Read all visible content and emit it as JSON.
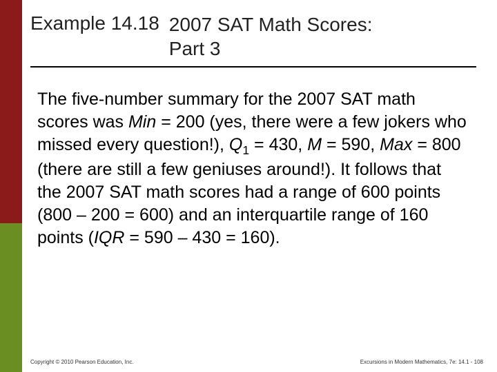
{
  "sidebar": {
    "top_color": "#8b1a1a",
    "bottom_color": "#6b8e23"
  },
  "header": {
    "example_label": "Example 14.18",
    "title_line1": "2007 SAT Math Scores:",
    "title_line2": "Part 3"
  },
  "body": {
    "seg1": "The five-number summary for the 2007 SAT math scores was ",
    "min_lbl": "Min",
    "seg2": " = 200 (yes, there were a few jokers who missed every question!), ",
    "q1_lbl": "Q",
    "q1_sub": "1",
    "seg3": " = 430, ",
    "m_lbl": "M",
    "seg4": " = 590, ",
    "max_lbl": "Max",
    "seg5": " = 800 (there are still a few geniuses around!). It follows that the 2007 SAT math scores had a range of 600 points (800 – 200 = 600) and an interquartile range of 160 points (",
    "iqr_lbl": "IQR",
    "seg6": " = 590 – 430 = 160)."
  },
  "footer": {
    "left": "Copyright © 2010 Pearson Education, Inc.",
    "right": "Excursions in Modern Mathematics, 7e: 14.1 - 108"
  }
}
